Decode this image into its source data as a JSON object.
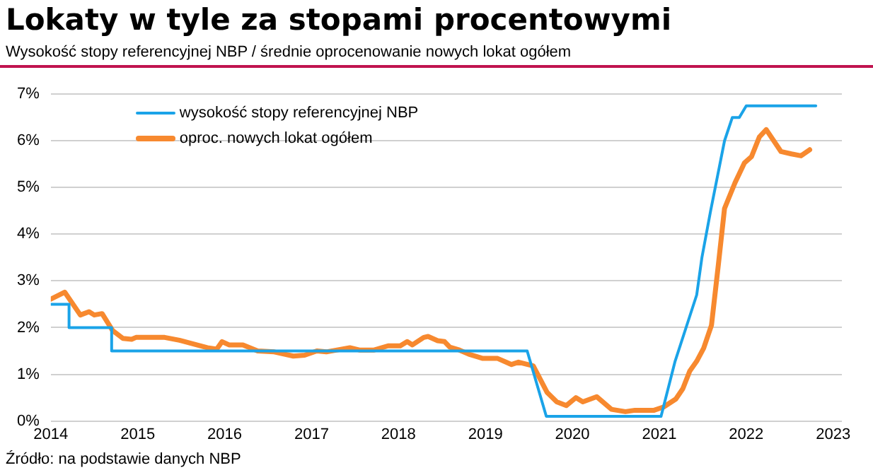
{
  "chart_data": {
    "type": "line",
    "title": "Lokaty w tyle za stopami procentowymi",
    "subtitle": "Wysokość stopy referencyjnej NBP / średnie oprocenowanie nowych lokat ogółem",
    "annotations": [
      "Źródło: na podstawie danych NBP"
    ],
    "xlim": [
      2014,
      2023.1
    ],
    "xticks": [
      2014,
      2015,
      2016,
      2017,
      2018,
      2019,
      2020,
      2021,
      2022,
      2023
    ],
    "ylim": [
      0,
      7
    ],
    "yticks": [
      {
        "value": 0,
        "label": "0%"
      },
      {
        "value": 1,
        "label": "1%"
      },
      {
        "value": 2,
        "label": "2%"
      },
      {
        "value": 3,
        "label": "3%"
      },
      {
        "value": 4,
        "label": "4%"
      },
      {
        "value": 5,
        "label": "5%"
      },
      {
        "value": 6,
        "label": "6%"
      },
      {
        "value": 7,
        "label": "7%"
      }
    ],
    "grid": "y",
    "legend": "top left",
    "marker": "none",
    "line_style": "solid",
    "series": [
      {
        "name": "wysokość stopy referencyjnej NBP",
        "color": "#1aa3e8",
        "x": [
          2014.0,
          2014.21,
          2014.21,
          2014.7,
          2014.7,
          2019.48,
          2019.7,
          2021.02,
          2021.18,
          2021.43,
          2021.49,
          2021.59,
          2021.75,
          2021.84,
          2021.92,
          2022.0,
          2022.8
        ],
        "values": [
          2.5,
          2.5,
          2.0,
          2.0,
          1.5,
          1.5,
          0.1,
          0.1,
          1.27,
          2.7,
          3.5,
          4.5,
          6.0,
          6.5,
          6.5,
          6.75,
          6.75
        ]
      },
      {
        "name": "oproc. nowych lokat ogółem",
        "color": "#f7892f",
        "x": [
          2014.0,
          2014.16,
          2014.34,
          2014.44,
          2014.5,
          2014.59,
          2014.71,
          2014.83,
          2014.93,
          2014.98,
          2015.31,
          2015.48,
          2015.8,
          2015.91,
          2015.97,
          2016.05,
          2016.21,
          2016.38,
          2016.57,
          2016.79,
          2016.92,
          2017.06,
          2017.17,
          2017.44,
          2017.55,
          2017.72,
          2017.88,
          2018.02,
          2018.1,
          2018.16,
          2018.29,
          2018.34,
          2018.45,
          2018.53,
          2018.59,
          2018.7,
          2018.81,
          2018.97,
          2019.14,
          2019.3,
          2019.38,
          2019.55,
          2019.71,
          2019.82,
          2019.93,
          2020.04,
          2020.12,
          2020.28,
          2020.45,
          2020.61,
          2020.72,
          2020.94,
          2021.05,
          2021.19,
          2021.27,
          2021.35,
          2021.43,
          2021.51,
          2021.6,
          2021.68,
          2021.75,
          2021.87,
          2021.98,
          2022.06,
          2022.15,
          2022.23,
          2022.4,
          2022.52,
          2022.63,
          2022.73
        ],
        "values": [
          2.61,
          2.76,
          2.27,
          2.34,
          2.27,
          2.3,
          1.94,
          1.77,
          1.75,
          1.79,
          1.79,
          1.73,
          1.57,
          1.54,
          1.7,
          1.63,
          1.63,
          1.5,
          1.48,
          1.39,
          1.41,
          1.5,
          1.48,
          1.57,
          1.52,
          1.52,
          1.61,
          1.61,
          1.7,
          1.63,
          1.79,
          1.81,
          1.72,
          1.7,
          1.58,
          1.52,
          1.43,
          1.34,
          1.34,
          1.21,
          1.26,
          1.18,
          0.61,
          0.41,
          0.33,
          0.5,
          0.41,
          0.52,
          0.25,
          0.2,
          0.23,
          0.23,
          0.3,
          0.47,
          0.69,
          1.07,
          1.28,
          1.56,
          2.05,
          3.36,
          4.55,
          5.1,
          5.53,
          5.66,
          6.08,
          6.24,
          5.77,
          5.72,
          5.68,
          5.81
        ]
      }
    ]
  }
}
